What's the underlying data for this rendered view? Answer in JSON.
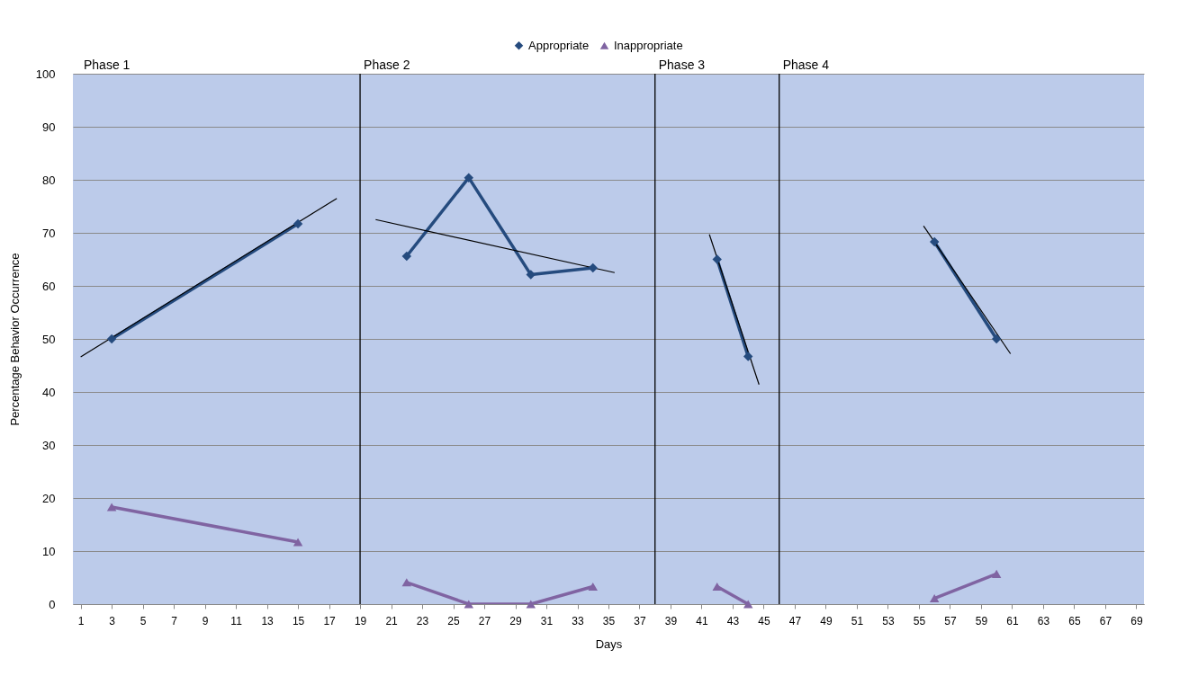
{
  "chart_data": {
    "type": "line",
    "xlabel": "Days",
    "ylabel": "Percentage Behavior Occurrence",
    "xlim": [
      0.5,
      69.5
    ],
    "xticks": [
      1,
      3,
      5,
      7,
      9,
      11,
      13,
      15,
      17,
      19,
      21,
      23,
      25,
      27,
      29,
      31,
      33,
      35,
      37,
      39,
      41,
      43,
      45,
      47,
      49,
      51,
      53,
      55,
      57,
      59,
      61,
      63,
      65,
      67,
      69
    ],
    "ylim": [
      0,
      100
    ],
    "yticks": [
      0,
      10,
      20,
      30,
      40,
      50,
      60,
      70,
      80,
      90,
      100
    ],
    "grid": "y",
    "legend": "top",
    "line_style": "solid",
    "series": [
      {
        "name": "Appropriate",
        "color": "#254b7e",
        "marker": "diamond",
        "x": [
          3,
          15,
          null,
          22,
          26,
          30,
          34,
          null,
          42,
          44,
          null,
          56,
          60
        ],
        "values": [
          50,
          71.7,
          null,
          65.6,
          80.4,
          62.1,
          63.4,
          null,
          65,
          46.7,
          null,
          68.3,
          50
        ]
      },
      {
        "name": "Inappropriate",
        "color": "#8064a2",
        "marker": "triangle",
        "x": [
          3,
          15,
          null,
          22,
          26,
          30,
          34,
          null,
          42,
          44,
          null,
          56,
          60
        ],
        "values": [
          18.3,
          11.7,
          null,
          4.1,
          0,
          0,
          3.3,
          null,
          3.3,
          0,
          null,
          1.1,
          5.7
        ]
      },
      {
        "color": "#000000",
        "marker": "none",
        "x": [
          1,
          17.5
        ],
        "values": [
          46.6,
          76.5
        ]
      },
      {
        "color": "#000000",
        "marker": "none",
        "x": [
          20,
          35.4
        ],
        "values": [
          72.5,
          62.5
        ]
      },
      {
        "color": "#000000",
        "marker": "none",
        "x": [
          41.5,
          44.7
        ],
        "values": [
          69.7,
          41.4
        ]
      },
      {
        "color": "#000000",
        "marker": "none",
        "x": [
          55.3,
          60.9
        ],
        "values": [
          71.3,
          47.2
        ]
      }
    ],
    "ref_lines": [
      {
        "axis": "x",
        "value": 19,
        "label": "Phase 2",
        "color": "#000000"
      },
      {
        "axis": "x",
        "value": 38,
        "label": "Phase 3",
        "color": "#000000"
      },
      {
        "axis": "x",
        "value": 46,
        "label": "Phase 4",
        "color": "#000000"
      }
    ],
    "annotations": [
      "Phase 1"
    ]
  }
}
